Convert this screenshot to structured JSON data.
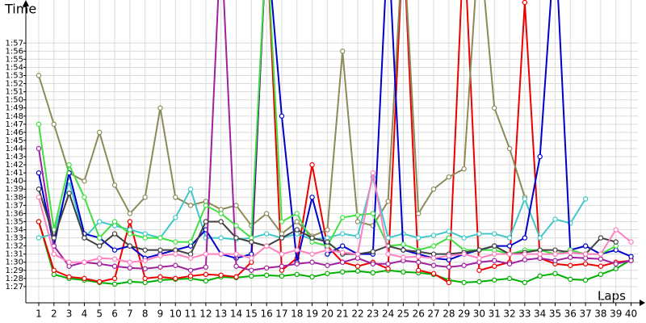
{
  "chart_data": {
    "type": "line",
    "title": "Time",
    "x_label": "Laps",
    "xlim": [
      0.15,
      40.45
    ],
    "ylim": [
      85.0,
      122.3
    ],
    "grid": true,
    "xticks": [
      1,
      2,
      3,
      4,
      5,
      6,
      7,
      8,
      9,
      10,
      11,
      12,
      13,
      14,
      15,
      16,
      17,
      18,
      19,
      20,
      21,
      22,
      23,
      24,
      25,
      26,
      27,
      28,
      29,
      30,
      31,
      32,
      33,
      34,
      35,
      36,
      37,
      38,
      39,
      40
    ],
    "yticks": [
      {
        "value": 87,
        "label": "1:27"
      },
      {
        "value": 88,
        "label": "1:28"
      },
      {
        "value": 89,
        "label": "1:29"
      },
      {
        "value": 90,
        "label": "1:30"
      },
      {
        "value": 91,
        "label": "1:31"
      },
      {
        "value": 92,
        "label": "1:32"
      },
      {
        "value": 93,
        "label": "1:33"
      },
      {
        "value": 94,
        "label": "1:34"
      },
      {
        "value": 95,
        "label": "1:35"
      },
      {
        "value": 96,
        "label": "1:36"
      },
      {
        "value": 97,
        "label": "1:37"
      },
      {
        "value": 98,
        "label": "1:38"
      },
      {
        "value": 99,
        "label": "1:39"
      },
      {
        "value": 100,
        "label": "1:40"
      },
      {
        "value": 101,
        "label": "1:41"
      },
      {
        "value": 102,
        "label": "1:42"
      },
      {
        "value": 103,
        "label": "1:43"
      },
      {
        "value": 104,
        "label": "1:44"
      },
      {
        "value": 105,
        "label": "1:45"
      },
      {
        "value": 106,
        "label": "1:46"
      },
      {
        "value": 107,
        "label": "1:47"
      },
      {
        "value": 108,
        "label": "1:48"
      },
      {
        "value": 109,
        "label": "1:49"
      },
      {
        "value": 110,
        "label": "1:50"
      },
      {
        "value": 111,
        "label": "1:51"
      },
      {
        "value": 112,
        "label": "1:52"
      },
      {
        "value": 113,
        "label": "1:53"
      },
      {
        "value": 114,
        "label": "1:54"
      },
      {
        "value": 115,
        "label": "1:55"
      },
      {
        "value": 116,
        "label": "1:56"
      },
      {
        "value": 117,
        "label": "1:57"
      }
    ],
    "x": [
      1,
      2,
      3,
      4,
      5,
      6,
      7,
      8,
      9,
      10,
      11,
      12,
      13,
      14,
      15,
      16,
      17,
      18,
      19,
      20,
      21,
      22,
      23,
      24,
      25,
      26,
      27,
      28,
      29,
      30,
      31,
      32,
      33,
      34,
      35,
      36,
      37,
      38,
      39,
      40
    ],
    "series": [
      {
        "color": "#00b000",
        "values": [
          95,
          88.5,
          88,
          87.8,
          87.5,
          87.3,
          87.6,
          87.5,
          87.8,
          87.9,
          88,
          87.7,
          88.2,
          88.1,
          88.3,
          88.4,
          88.3,
          88.5,
          88.2,
          88.6,
          88.8,
          88.9,
          88.7,
          89,
          88.8,
          88.7,
          88.5,
          87.8,
          87.5,
          87.6,
          87.8,
          88,
          87.5,
          88.3,
          88.6,
          87.9,
          87.8,
          88.5,
          89.2,
          90.3
        ]
      },
      {
        "color": "#ee0000",
        "values": [
          95,
          89,
          88.2,
          88,
          87.6,
          88,
          95,
          88,
          88.2,
          88,
          88.3,
          88.5,
          88.4,
          88.2,
          90,
          130,
          89,
          90.5,
          102,
          92,
          90,
          89.5,
          90,
          89.2,
          130,
          89,
          88.6,
          87.5,
          130,
          89,
          89.5,
          90,
          122,
          90.5,
          89.8,
          89.6,
          89.8,
          89.5,
          90,
          90.2
        ]
      },
      {
        "color": "#8b8b5a",
        "values": [
          113,
          107,
          101,
          100,
          106,
          99.5,
          96,
          98,
          109,
          98,
          97,
          97.5,
          96.5,
          97,
          94.5,
          96,
          93.5,
          95,
          93.2,
          94,
          116,
          95,
          94.5,
          97.5,
          130,
          96,
          99,
          100.5,
          101.5,
          130,
          109,
          104,
          98,
          null,
          null,
          null,
          null,
          null,
          null,
          null
        ]
      },
      {
        "color": "#40c8c8",
        "values": [
          93,
          93.5,
          100,
          93,
          95,
          94.5,
          94,
          93.5,
          93,
          95.5,
          99,
          93,
          93,
          92.8,
          93,
          93.5,
          93,
          93.5,
          92.8,
          93,
          93.5,
          93.2,
          100.5,
          93,
          93.5,
          93,
          93.3,
          93.8,
          93,
          93.5,
          93.5,
          93,
          97.8,
          93,
          95.3,
          94.8,
          97.8,
          null,
          null,
          null
        ]
      },
      {
        "color": "#0000cc",
        "values": [
          101,
          92,
          101,
          93.5,
          93,
          91.5,
          92,
          90.5,
          91,
          91.5,
          92,
          94,
          91,
          90.5,
          91,
          130,
          108,
          90,
          98,
          91,
          92,
          91,
          91,
          130,
          91.5,
          91,
          90.5,
          90.3,
          91,
          91.5,
          92,
          92,
          93,
          103,
          130,
          91.5,
          92,
          91,
          91.5,
          90.7
        ]
      },
      {
        "color": "#a020a0",
        "values": [
          104,
          92,
          89.5,
          90,
          89.8,
          89.5,
          89.3,
          89.2,
          89.4,
          89.6,
          89,
          89.4,
          130,
          89.5,
          89,
          89.3,
          89.5,
          89.8,
          90,
          89.6,
          90,
          90.5,
          89.8,
          89.8,
          90.2,
          90,
          89.6,
          89.4,
          89.6,
          90,
          90.2,
          89.8,
          90.3,
          90.5,
          90.2,
          90.6,
          90.5,
          90.4,
          89.8,
          90.2
        ]
      },
      {
        "color": "#40e040",
        "values": [
          107,
          94,
          102,
          98,
          93,
          95,
          93.5,
          93,
          93,
          92.5,
          92.5,
          97,
          96,
          94.5,
          93,
          130,
          95,
          96,
          92.5,
          92,
          95.5,
          95.8,
          96,
          92,
          92.2,
          91.5,
          92,
          93,
          91.5,
          91.5,
          91.5,
          91,
          91.5,
          91.5,
          91,
          91.5,
          91,
          91,
          92,
          null
        ]
      },
      {
        "color": "#404040",
        "values": [
          99,
          93,
          98.5,
          93,
          92,
          93.5,
          92,
          91.5,
          91.5,
          91.5,
          91,
          95,
          95,
          93,
          92.5,
          92,
          93,
          94,
          93,
          92.5,
          91,
          91,
          91.3,
          92,
          91.5,
          91.3,
          91,
          91,
          91.2,
          91.5,
          92,
          91,
          91.2,
          91.5,
          91.5,
          91.2,
          91,
          93,
          92.5,
          null
        ]
      },
      {
        "color": "#ff80c0",
        "values": [
          98,
          91,
          90,
          90,
          90.5,
          90.4,
          90,
          90.2,
          90.8,
          91,
          90.5,
          91,
          91,
          91,
          90.5,
          92,
          91,
          91.5,
          91,
          91.5,
          91.2,
          91,
          101,
          91,
          90.6,
          90.7,
          90.5,
          90.8,
          91,
          90.5,
          91,
          91,
          91,
          91,
          91,
          91.2,
          91,
          91,
          94,
          92.5
        ]
      }
    ]
  }
}
